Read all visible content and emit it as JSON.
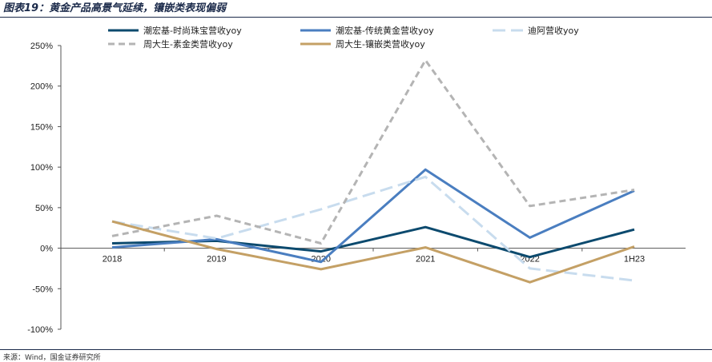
{
  "figure": {
    "title": "图表19：黄金产品高景气延续，镶嵌类表现偏弱",
    "source": "来源：Wind，国金证券研究所"
  },
  "chart_data": {
    "type": "line",
    "title": "",
    "xlabel": "",
    "ylabel": "",
    "categories": [
      "2018",
      "2019",
      "2020",
      "2021",
      "2022",
      "1H23"
    ],
    "y_unit": "%",
    "ylim": [
      -100,
      250
    ],
    "yticks": [
      -100,
      -50,
      0,
      50,
      100,
      150,
      200,
      250
    ],
    "ytick_labels": [
      "-100%",
      "-50%",
      "0%",
      "50%",
      "100%",
      "150%",
      "200%",
      "250%"
    ],
    "grid": false,
    "legend_position": "top",
    "series": [
      {
        "name": "潮宏基-时尚珠宝营收yoy",
        "color": "#0c4a6e",
        "dash": "solid",
        "values": [
          6,
          9,
          -4,
          26,
          -11,
          23
        ]
      },
      {
        "name": "潮宏基-传统黄金营收yoy",
        "color": "#4a7ec0",
        "dash": "solid",
        "values": [
          1,
          11,
          -17,
          97,
          13,
          71
        ]
      },
      {
        "name": "迪阿营收yoy",
        "color": "#c8dcee",
        "dash": "long-dash",
        "values": [
          33,
          12,
          48,
          88,
          -25,
          -40
        ]
      },
      {
        "name": "周大生-素金类营收yoy",
        "color": "#b4b4b4",
        "dash": "dash",
        "values": [
          15,
          40,
          6,
          232,
          52,
          72
        ]
      },
      {
        "name": "周大生-镶嵌类营收yoy",
        "color": "#c4a065",
        "dash": "solid",
        "values": [
          33,
          -1,
          -26,
          1,
          -42,
          2
        ]
      }
    ]
  }
}
